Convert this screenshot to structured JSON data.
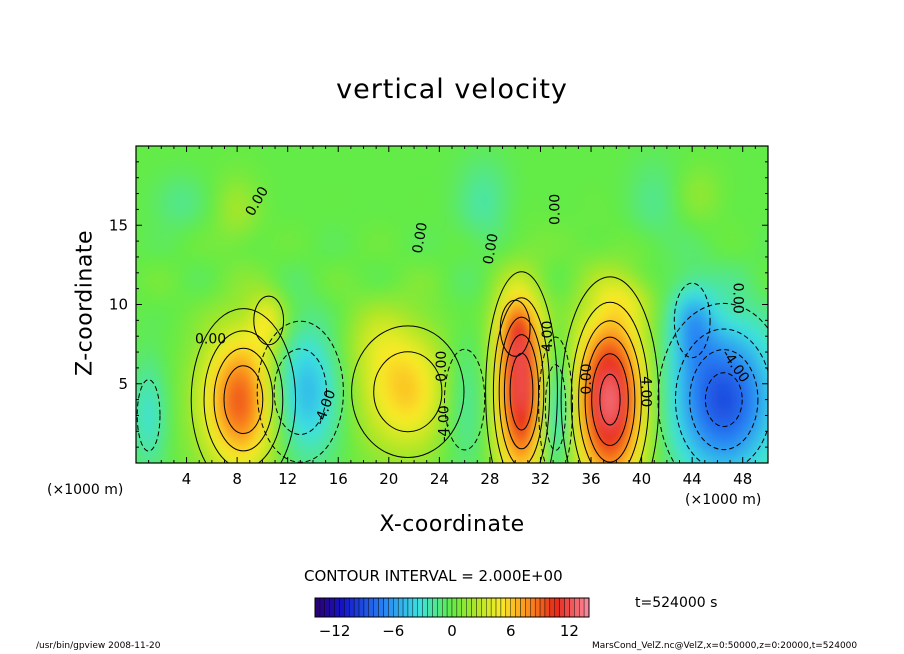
{
  "chart_data": {
    "type": "heatmap",
    "title": "vertical velocity",
    "xlabel": "X-coordinate",
    "ylabel": "Z-coordinate",
    "x_unit": "(×1000 m)",
    "xlim": [
      0,
      50
    ],
    "ylim": [
      0,
      20
    ],
    "x_ticks": [
      4,
      8,
      12,
      16,
      20,
      24,
      28,
      32,
      36,
      40,
      44,
      48
    ],
    "y_ticks": [
      5,
      10,
      15
    ],
    "color_range": [
      -14,
      14
    ],
    "colorbar_ticks": [
      -12,
      -6,
      0,
      6,
      12
    ],
    "contour_interval_label": "CONTOUR INTERVAL = 2.000E+00",
    "time_label": "t=524000 s",
    "contour_labels": [
      {
        "text": "0.00",
        "x": 5.9,
        "z": 7.8,
        "angle": 0
      },
      {
        "text": "0.00",
        "x": 9.6,
        "z": 16.5,
        "angle": -60
      },
      {
        "text": "0.00",
        "x": 22.5,
        "z": 14.2,
        "angle": -80
      },
      {
        "text": "0.00",
        "x": 28.1,
        "z": 13.5,
        "angle": -80
      },
      {
        "text": "0.00",
        "x": 33.2,
        "z": 16.0,
        "angle": -90
      },
      {
        "text": "0.00",
        "x": 24.2,
        "z": 6.1,
        "angle": -90
      },
      {
        "text": "0.00",
        "x": 35.7,
        "z": 5.3,
        "angle": -90
      },
      {
        "text": "-4.00",
        "x": 15.0,
        "z": 3.5,
        "angle": -70
      },
      {
        "text": "-4.00",
        "x": 24.4,
        "z": 2.5,
        "angle": -90
      },
      {
        "text": "4.00",
        "x": 32.6,
        "z": 8.0,
        "angle": -90
      },
      {
        "text": "4.00",
        "x": 40.3,
        "z": 4.5,
        "angle": 90
      },
      {
        "text": "-4.00",
        "x": 47.4,
        "z": 6.1,
        "angle": 55
      },
      {
        "text": "0.00",
        "x": 47.6,
        "z": 10.4,
        "angle": 90
      }
    ]
  },
  "footer": {
    "left": "/usr/bin/gpview   2008-11-20",
    "right": "MarsCond_VelZ.nc@VelZ,x=0:50000,z=0:20000,t=524000"
  }
}
